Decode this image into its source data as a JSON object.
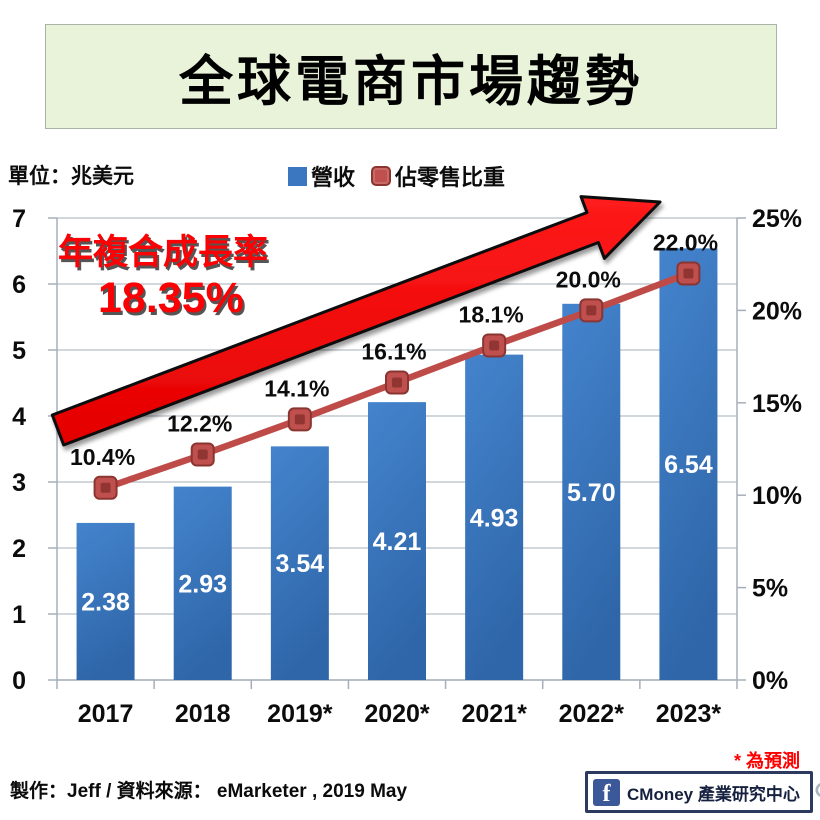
{
  "title": {
    "text": "全球電商市場趨勢",
    "bg_color": "#E8F3DA"
  },
  "unit_label": "單位：兆美元",
  "legend": {
    "items": [
      {
        "label": "營收",
        "color": "#3B76C0",
        "marker": "square"
      },
      {
        "label": "佔零售比重",
        "color": "#C0504D",
        "marker": "rounded-square"
      }
    ]
  },
  "annotation": {
    "line1": "年複合成長率",
    "line2": "18.35%",
    "color": "#FB0104"
  },
  "footnote": "* 為預測",
  "credit": "製作：Jeff / 資料來源： eMarketer , 2019 May",
  "brand": {
    "facebook_glyph": "f",
    "name": "CMoney 產業研究中心",
    "facebook_color": "#3B5998"
  },
  "colors": {
    "bar": "#3B76C0",
    "line": "#BE4B48",
    "marker": "#C0504D",
    "arrow": "#EF0000",
    "grid": "#B7BFC8"
  },
  "chart_data": {
    "type": "combo",
    "categories": [
      "2017",
      "2018",
      "2019*",
      "2020*",
      "2021*",
      "2022*",
      "2023*"
    ],
    "series": [
      {
        "name": "營收",
        "type": "bar",
        "axis": "left",
        "color": "#3B76C0",
        "values": [
          2.38,
          2.93,
          3.54,
          4.21,
          4.93,
          5.7,
          6.54
        ],
        "labels": [
          "2.38",
          "2.93",
          "3.54",
          "4.21",
          "4.93",
          "5.70",
          "6.54"
        ],
        "label_color": "#FFFFFF"
      },
      {
        "name": "佔零售比重",
        "type": "line",
        "axis": "right",
        "color": "#BE4B48",
        "values": [
          10.4,
          12.2,
          14.1,
          16.1,
          18.1,
          20.0,
          22.0
        ],
        "labels": [
          "10.4%",
          "12.2%",
          "14.1%",
          "16.1%",
          "18.1%",
          "20.0%",
          "22.0%"
        ],
        "label_color": "#000000"
      }
    ],
    "left_axis": {
      "range": [
        0,
        7
      ],
      "ticks": [
        "0",
        "1",
        "2",
        "3",
        "4",
        "5",
        "6",
        "7"
      ]
    },
    "right_axis": {
      "range": [
        0,
        25
      ],
      "ticks": [
        "0%",
        "5%",
        "10%",
        "15%",
        "20%",
        "25%"
      ]
    },
    "grid": true,
    "legend_position": "top",
    "annotation_text": "年複合成長率 18.35%"
  }
}
